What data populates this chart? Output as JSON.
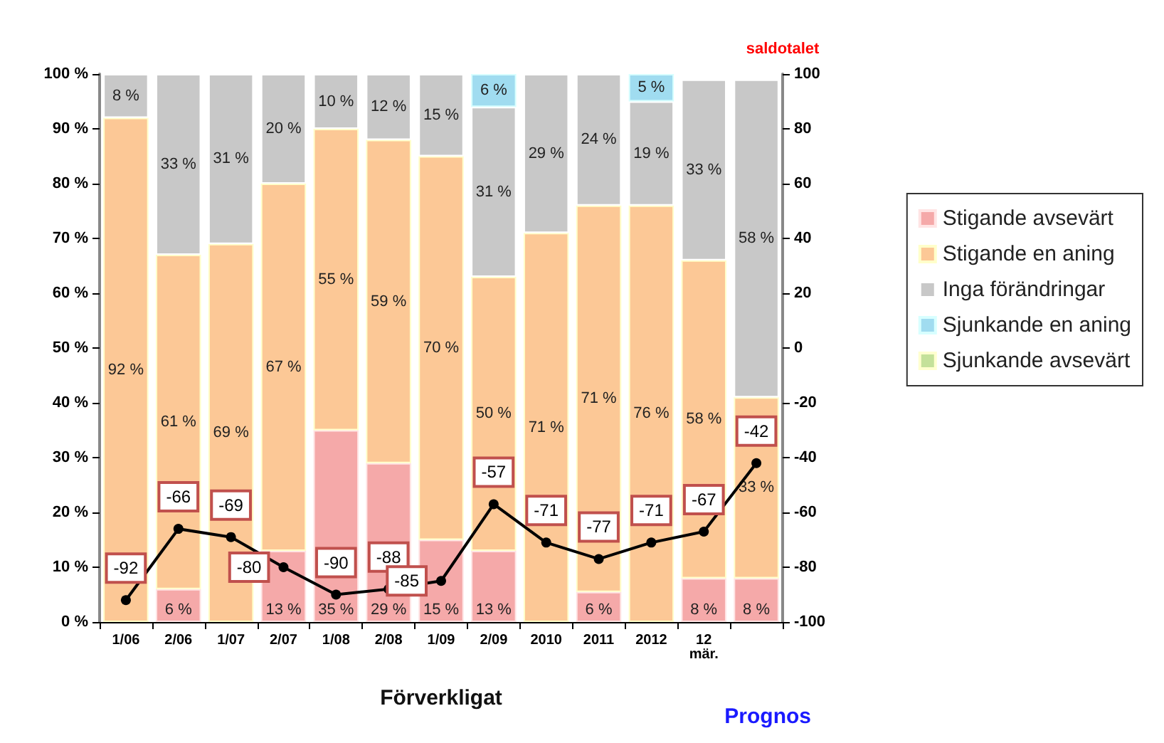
{
  "chart_data": {
    "type": "bar",
    "stacked": true,
    "categories": [
      "1/06",
      "2/06",
      "1/07",
      "2/07",
      "1/08",
      "2/08",
      "1/09",
      "2/09",
      "2010",
      "2011",
      "2012",
      "12\nmär.",
      null
    ],
    "xlabel": "Förverkligat",
    "y2label": "saldotalet",
    "annotations": [
      "Prognos"
    ],
    "series": [
      {
        "name": "Stigande avsevärt",
        "color": "#f5a9a9",
        "values": [
          null,
          6,
          null,
          13,
          35,
          29,
          15,
          13,
          null,
          5.5,
          null,
          8,
          8
        ],
        "value_labels": [
          null,
          "6 %",
          null,
          "13 %",
          "35 %",
          "29 %",
          "15 %",
          "13 %",
          null,
          "6 %",
          null,
          "8 %",
          "8 %"
        ]
      },
      {
        "name": "Stigande en aning",
        "color": "#fcc896",
        "values": [
          92,
          61,
          69,
          67,
          55,
          59,
          70,
          50,
          71,
          70.5,
          76,
          58,
          33
        ],
        "value_labels": [
          "92 %",
          "61 %",
          "69 %",
          "67 %",
          "55 %",
          "59 %",
          "70 %",
          "50 %",
          "71 %",
          "71 %",
          "76 %",
          "58 %",
          "33 %"
        ]
      },
      {
        "name": "Inga förändringar",
        "color": "#c8c8c8",
        "values": [
          8,
          33,
          31,
          20,
          10,
          12,
          15,
          31,
          29,
          24,
          19,
          33,
          58
        ],
        "value_labels": [
          "8 %",
          "33 %",
          "31 %",
          "20 %",
          "10 %",
          "12 %",
          "15 %",
          "31 %",
          "29 %",
          "24 %",
          "19 %",
          "33 %",
          "58 %"
        ]
      },
      {
        "name": "Sjunkande en aning",
        "color": "#a0dcf0",
        "values": [
          null,
          null,
          null,
          null,
          null,
          null,
          null,
          6,
          null,
          null,
          5,
          null,
          null
        ],
        "value_labels": [
          null,
          null,
          null,
          null,
          null,
          null,
          null,
          "6 %",
          null,
          null,
          "5 %",
          null,
          null
        ]
      },
      {
        "name": "Sjunkande avsevärt",
        "color": "#c4e19a",
        "values": [
          null,
          null,
          null,
          null,
          null,
          null,
          null,
          null,
          null,
          null,
          null,
          null,
          null
        ]
      },
      {
        "type": "line",
        "axis": "y2",
        "color": "#000000",
        "marker": "circle",
        "values": [
          -92,
          -66,
          -69,
          -80,
          -90,
          -88,
          -85,
          -57,
          -71,
          -77,
          -71,
          -67,
          -42
        ],
        "value_labels": [
          "-92",
          "-66",
          "-69",
          "-80",
          "-90",
          "-88",
          "-85",
          "-57",
          "-71",
          "-77",
          "-71",
          "-67",
          "-42"
        ]
      }
    ],
    "ylim": [
      0,
      100
    ],
    "yticks": [
      {
        "value": 0,
        "label": "0 %"
      },
      {
        "value": 10,
        "label": "10 %"
      },
      {
        "value": 20,
        "label": "20 %"
      },
      {
        "value": 30,
        "label": "30 %"
      },
      {
        "value": 40,
        "label": "40 %"
      },
      {
        "value": 50,
        "label": "50 %"
      },
      {
        "value": 60,
        "label": "60 %"
      },
      {
        "value": 70,
        "label": "70 %"
      },
      {
        "value": 80,
        "label": "80 %"
      },
      {
        "value": 90,
        "label": "90 %"
      },
      {
        "value": 100,
        "label": "100 %"
      }
    ],
    "y2lim": [
      -100,
      100
    ],
    "y2ticks": [
      -100,
      -80,
      -60,
      -40,
      -20,
      0,
      20,
      40,
      60,
      80,
      100
    ],
    "grid": false,
    "legend": "right"
  }
}
